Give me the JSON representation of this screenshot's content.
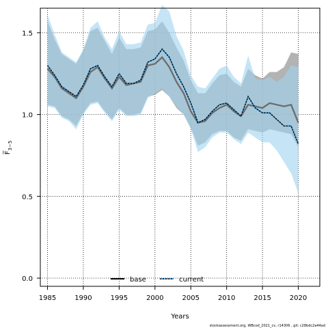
{
  "chart_data": {
    "type": "line",
    "xlabel": "Years",
    "ylabel": "F̅",
    "ylabel_subscript": "3−5",
    "xlim": [
      1984,
      2023
    ],
    "ylim": [
      -0.05,
      1.65
    ],
    "x_ticks": [
      1985,
      1990,
      1995,
      2000,
      2005,
      2010,
      2015,
      2020
    ],
    "y_ticks": [
      0.0,
      0.5,
      1.0,
      1.5
    ],
    "y_tick_labels": [
      "0.0",
      "0.5",
      "1.0",
      "1.5"
    ],
    "grid": true,
    "legend_position": "bottom",
    "colors": {
      "base_line": "#000000",
      "base_band": "#9a9a9a",
      "current_line": "#000000",
      "current_dots": "#1f7bbf",
      "current_band": "#9fd4f0"
    },
    "x": [
      1985,
      1986,
      1987,
      1988,
      1989,
      1990,
      1991,
      1992,
      1993,
      1994,
      1995,
      1996,
      1997,
      1998,
      1999,
      2000,
      2001,
      2002,
      2003,
      2004,
      2005,
      2006,
      2007,
      2008,
      2009,
      2010,
      2011,
      2012,
      2013,
      2014,
      2015,
      2016,
      2017,
      2018,
      2019,
      2020
    ],
    "series": [
      {
        "name": "base",
        "style": "solid",
        "values": [
          1.28,
          1.23,
          1.16,
          1.13,
          1.1,
          1.17,
          1.26,
          1.29,
          1.22,
          1.16,
          1.23,
          1.18,
          1.19,
          1.2,
          1.3,
          1.31,
          1.35,
          1.29,
          1.2,
          1.13,
          1.02,
          0.95,
          0.96,
          1.01,
          1.04,
          1.06,
          1.02,
          0.99,
          1.06,
          1.05,
          1.04,
          1.07,
          1.06,
          1.05,
          1.06,
          0.95
        ],
        "lower": [
          1.06,
          1.05,
          0.99,
          0.97,
          0.93,
          1.01,
          1.07,
          1.08,
          1.02,
          0.97,
          1.04,
          1.0,
          1.0,
          1.01,
          1.11,
          1.12,
          1.15,
          1.11,
          1.04,
          1.0,
          0.92,
          0.81,
          0.83,
          0.88,
          0.9,
          0.9,
          0.86,
          0.84,
          0.91,
          0.9,
          0.89,
          0.91,
          0.9,
          0.89,
          0.88,
          0.8
        ],
        "upper": [
          1.57,
          1.46,
          1.37,
          1.34,
          1.31,
          1.39,
          1.51,
          1.53,
          1.45,
          1.37,
          1.47,
          1.4,
          1.4,
          1.41,
          1.51,
          1.52,
          1.57,
          1.5,
          1.41,
          1.33,
          1.21,
          1.13,
          1.13,
          1.19,
          1.24,
          1.25,
          1.2,
          1.17,
          1.28,
          1.24,
          1.22,
          1.26,
          1.26,
          1.29,
          1.38,
          1.37
        ]
      },
      {
        "name": "current",
        "style": "dotted",
        "values": [
          1.3,
          1.24,
          1.17,
          1.14,
          1.11,
          1.18,
          1.28,
          1.3,
          1.23,
          1.17,
          1.25,
          1.19,
          1.19,
          1.21,
          1.32,
          1.34,
          1.4,
          1.35,
          1.25,
          1.17,
          1.07,
          0.95,
          0.97,
          1.02,
          1.06,
          1.07,
          1.03,
          0.99,
          1.11,
          1.04,
          1.01,
          1.01,
          0.97,
          0.93,
          0.93,
          0.82
        ],
        "lower": [
          1.05,
          1.04,
          0.98,
          0.96,
          0.91,
          1.0,
          1.06,
          1.07,
          1.01,
          0.96,
          1.03,
          0.99,
          0.99,
          1.0,
          1.1,
          1.13,
          1.16,
          1.11,
          1.05,
          1.0,
          0.91,
          0.77,
          0.8,
          0.86,
          0.89,
          0.89,
          0.85,
          0.82,
          0.89,
          0.86,
          0.83,
          0.83,
          0.78,
          0.71,
          0.64,
          0.52
        ],
        "upper": [
          1.61,
          1.49,
          1.38,
          1.35,
          1.32,
          1.4,
          1.53,
          1.57,
          1.47,
          1.4,
          1.51,
          1.43,
          1.43,
          1.44,
          1.55,
          1.56,
          1.67,
          1.63,
          1.48,
          1.39,
          1.24,
          1.17,
          1.16,
          1.22,
          1.28,
          1.3,
          1.23,
          1.19,
          1.36,
          1.22,
          1.21,
          1.23,
          1.2,
          1.23,
          1.3,
          1.29
        ]
      }
    ],
    "legend": [
      {
        "label": "base",
        "style": "solid"
      },
      {
        "label": "current",
        "style": "dotted"
      }
    ]
  },
  "footer": {
    "text": "stockassessment.org, WBcod_2021_cv, r14306 , git: c28bdc2a44ad"
  }
}
